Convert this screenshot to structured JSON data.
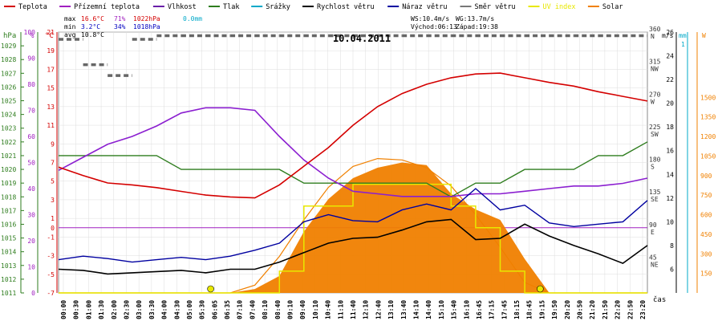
{
  "chart_data": {
    "type": "line",
    "title": "10.04.2011",
    "legend": [
      {
        "label": "Teplota",
        "color": "#d40000"
      },
      {
        "label": "Přízemní teplota",
        "color": "#a020c0"
      },
      {
        "label": "Vlhkost",
        "color": "#6a1fa8"
      },
      {
        "label": "Tlak",
        "color": "#2e7d1e"
      },
      {
        "label": "Srážky",
        "color": "#00a8c8"
      },
      {
        "label": "Rychlost větru",
        "color": "#000000"
      },
      {
        "label": "Náraz větru",
        "color": "#0000a0"
      },
      {
        "label": "Směr větru",
        "color": "#777777"
      },
      {
        "label": "UV index",
        "color": "#e8e800"
      },
      {
        "label": "Solar",
        "color": "#f08000"
      }
    ],
    "stats": {
      "max": {
        "label": "max",
        "temp": "16.6°C",
        "hum": "71%",
        "press": "1022hPa",
        "rain": "0.0mm"
      },
      "min": {
        "label": "min",
        "temp": "3.2°C",
        "hum": "34%",
        "press": "1018hPa"
      },
      "avg": {
        "label": "avg",
        "temp": "10.8°C"
      },
      "ws": "WS:10.4m/s",
      "wg": "WG:13.7m/s",
      "sunrise": "Východ:06:13",
      "sunset": "Západ:19:38"
    },
    "axes": {
      "hpa": {
        "unit": "hPa",
        "range": [
          1011,
          1030
        ],
        "ticks": [
          1011,
          1012,
          1013,
          1014,
          1015,
          1016,
          1017,
          1018,
          1019,
          1020,
          1021,
          1022,
          1023,
          1024,
          1025,
          1026,
          1027,
          1028,
          1029
        ],
        "color": "#2e7d1e"
      },
      "percent": {
        "unit": "%",
        "range": [
          0,
          100
        ],
        "ticks": [
          0,
          10,
          20,
          30,
          40,
          50,
          60,
          70,
          80,
          90,
          100
        ],
        "color": "#a020c0"
      },
      "celsius": {
        "unit": "°C",
        "range": [
          -7,
          21
        ],
        "ticks": [
          -7,
          -5,
          -3,
          -1,
          0,
          1,
          3,
          5,
          7,
          9,
          11,
          13,
          15,
          17,
          19,
          21
        ],
        "color": "#d40000"
      },
      "wind_dir": {
        "unit": "°",
        "range": [
          0,
          360
        ],
        "ticks": [
          {
            "v": 360,
            "l": "N"
          },
          {
            "v": 315,
            "l": "NW"
          },
          {
            "v": 270,
            "l": "W"
          },
          {
            "v": 225,
            "l": "SW"
          },
          {
            "v": 180,
            "l": "S"
          },
          {
            "v": 135,
            "l": "SE"
          },
          {
            "v": 90,
            "l": "E"
          },
          {
            "v": 45,
            "l": "NE"
          }
        ],
        "color": "#555555"
      },
      "wind_speed": {
        "unit": "m/s",
        "range": [
          4,
          26
        ],
        "ticks": [
          6,
          8,
          10,
          12,
          14,
          16,
          18,
          20,
          22,
          24,
          26
        ],
        "color": "#000000"
      },
      "rain": {
        "unit": "mm",
        "ticks": [
          "1"
        ],
        "color": "#00a8c8"
      },
      "solar": {
        "unit": "W",
        "range": [
          0,
          2000
        ],
        "ticks": [
          150,
          300,
          450,
          600,
          750,
          900,
          1050,
          1200,
          1350,
          1500
        ],
        "color": "#f08000"
      }
    },
    "xlabel": "čas",
    "time_labels": [
      "00:00",
      "00:30",
      "01:00",
      "01:30",
      "02:00",
      "02:30",
      "03:00",
      "03:30",
      "04:00",
      "04:30",
      "05:00",
      "05:30",
      "06:05",
      "06:35",
      "07:10",
      "07:40",
      "08:10",
      "08:40",
      "09:10",
      "09:40",
      "10:10",
      "10:40",
      "11:10",
      "11:40",
      "12:10",
      "12:40",
      "13:10",
      "13:40",
      "14:10",
      "14:40",
      "15:10",
      "15:40",
      "16:10",
      "16:45",
      "17:15",
      "17:45",
      "18:15",
      "18:45",
      "19:15",
      "19:50",
      "20:20",
      "20:50",
      "21:20",
      "21:50",
      "22:20",
      "22:50",
      "23:20"
    ],
    "x_hours": [
      0,
      1,
      2,
      3,
      4,
      5,
      6,
      7,
      8,
      9,
      10,
      11,
      12,
      13,
      14,
      15,
      16,
      17,
      18,
      19,
      20,
      21,
      22,
      23,
      24
    ],
    "series": [
      {
        "name": "Teplota",
        "unit": "°C",
        "color": "#d40000",
        "values": [
          6.5,
          5.6,
          4.8,
          4.6,
          4.3,
          3.9,
          3.5,
          3.3,
          3.2,
          4.6,
          6.6,
          8.6,
          11.0,
          13.0,
          14.4,
          15.4,
          16.1,
          16.5,
          16.6,
          16.1,
          15.6,
          15.2,
          14.6,
          14.1,
          13.6
        ]
      },
      {
        "name": "Vlhkost",
        "unit": "%",
        "color": "#8b1fd0",
        "values": [
          47,
          52,
          57,
          60,
          64,
          69,
          71,
          71,
          70,
          60,
          51,
          44,
          39,
          38,
          37,
          37,
          37,
          38,
          38,
          39,
          40,
          41,
          41,
          42,
          44
        ]
      },
      {
        "name": "Tlak",
        "unit": "hPa",
        "color": "#2e7d1e",
        "values": [
          1021,
          1021,
          1021,
          1021,
          1021,
          1020,
          1020,
          1020,
          1020,
          1020,
          1019,
          1019,
          1019,
          1019,
          1019,
          1019,
          1018,
          1019,
          1019,
          1020,
          1020,
          1020,
          1021,
          1021,
          1022
        ]
      },
      {
        "name": "Rychlost větru",
        "unit": "m/s",
        "color": "#000000",
        "values": [
          6.0,
          5.9,
          5.6,
          5.7,
          5.8,
          5.9,
          5.7,
          6.0,
          6.0,
          6.6,
          7.4,
          8.2,
          8.6,
          8.7,
          9.3,
          10.0,
          10.2,
          8.5,
          8.6,
          9.8,
          8.8,
          8.0,
          7.3,
          6.5,
          8.0
        ]
      },
      {
        "name": "Náraz větru",
        "unit": "m/s",
        "color": "#0000a0",
        "values": [
          6.8,
          7.1,
          6.9,
          6.6,
          6.8,
          7.0,
          6.8,
          7.1,
          7.6,
          8.2,
          10.0,
          10.6,
          10.1,
          10.0,
          11.0,
          11.5,
          11.0,
          12.8,
          11.0,
          11.4,
          9.9,
          9.6,
          9.8,
          10.0,
          11.8
        ]
      },
      {
        "name": "Směr větru",
        "unit": "°",
        "color": "#666666",
        "values": [
          350,
          315,
          300,
          350,
          355,
          355,
          355,
          355,
          355,
          355,
          355,
          355,
          355,
          355,
          355,
          355,
          355,
          355,
          355,
          355,
          355,
          355,
          355,
          355,
          355
        ]
      },
      {
        "name": "Solar",
        "unit": "W",
        "color": "#f08000",
        "values": [
          0,
          0,
          0,
          0,
          0,
          0,
          0,
          0,
          30,
          130,
          470,
          720,
          880,
          960,
          1000,
          980,
          760,
          640,
          560,
          260,
          0,
          0,
          0,
          0,
          0
        ]
      },
      {
        "name": "Solar max",
        "unit": "W",
        "color": "#f08000",
        "values": [
          0,
          0,
          0,
          0,
          0,
          0,
          0,
          0,
          60,
          280,
          560,
          810,
          970,
          1030,
          1020,
          960,
          820,
          600,
          350,
          80,
          0,
          0,
          0,
          0,
          0
        ]
      },
      {
        "name": "UV index",
        "unit": "",
        "color": "#e8e800",
        "values": [
          0,
          0,
          0,
          0,
          0,
          0,
          0,
          0,
          0,
          1,
          4,
          4,
          5,
          5,
          5,
          5,
          4,
          3,
          1,
          0,
          0,
          0,
          0,
          0,
          0
        ]
      }
    ]
  }
}
